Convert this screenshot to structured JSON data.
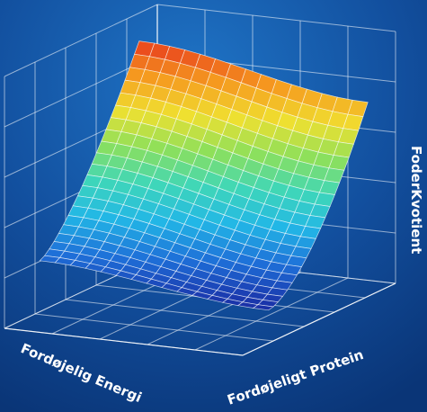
{
  "chart_data": {
    "type": "surface",
    "xlabel": "Fordøjelig Energi",
    "ylabel": "Fordøjeligt Protein",
    "zlabel": "FoderKvotient",
    "grid": true,
    "colormap": [
      "#1a2fa6",
      "#1e6fd8",
      "#22b7e6",
      "#3fd7b8",
      "#8ee05a",
      "#f0e030",
      "#f59a1f",
      "#e83a1d"
    ],
    "surface": {
      "u_samples": 21,
      "v_samples": 15,
      "z_min": 0.0,
      "z_max": 1.0,
      "z_corner_high_energy_low_protein": 1.0,
      "z_corner_high_energy_high_protein": 0.82,
      "z_corner_low_energy_low_protein": 0.12,
      "z_corner_low_energy_high_protein": 0.0
    }
  }
}
